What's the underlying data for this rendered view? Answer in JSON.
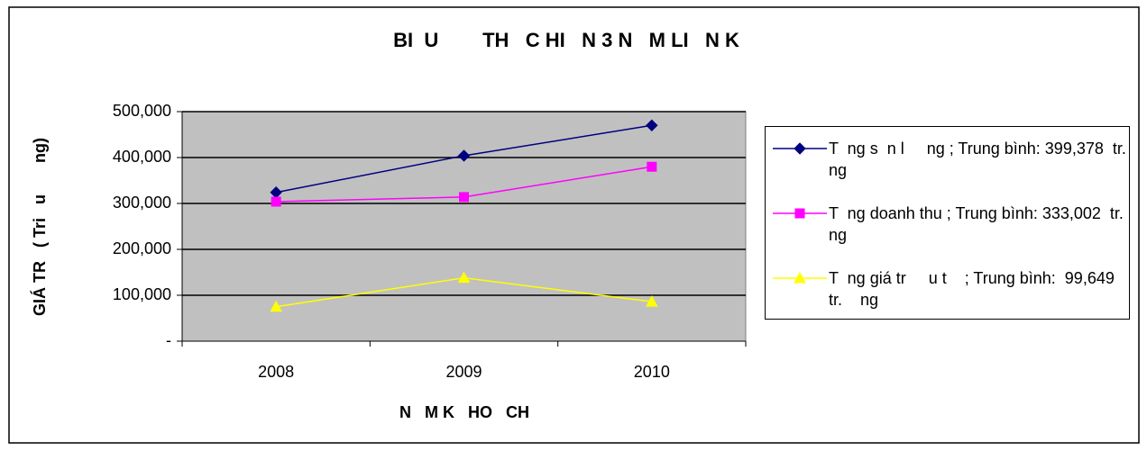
{
  "chart_data": {
    "type": "line",
    "title": "BI  U        TH   C HI   N 3 N   M LI   N K",
    "ylabel": "GIÁ TR   ( Tri   u       ng)",
    "xlabel": "N   M K   HO   CH",
    "categories": [
      "2008",
      "2009",
      "2010"
    ],
    "series": [
      {
        "name": "T  ng s  n l     ng ; Trung bình: 399,378  tr.    ng",
        "color": "#000080",
        "marker": "diamond",
        "values": [
          324000,
          404000,
          470000
        ]
      },
      {
        "name": "T  ng doanh thu ; Trung bình: 333,002  tr.    ng",
        "color": "#ff00ff",
        "marker": "square",
        "values": [
          304000,
          314000,
          380000
        ]
      },
      {
        "name": "T  ng giá tr     u t    ; Trung bình:  99,649  tr.    ng",
        "color": "#ffff00",
        "marker": "triangle",
        "values": [
          75000,
          138000,
          86000
        ]
      }
    ],
    "ylim": [
      0,
      500000
    ],
    "yticks": [
      {
        "value": 0,
        "label": "-"
      },
      {
        "value": 100000,
        "label": "100,000"
      },
      {
        "value": 200000,
        "label": "200,000"
      },
      {
        "value": 300000,
        "label": "300,000"
      },
      {
        "value": 400000,
        "label": "400,000"
      },
      {
        "value": 500000,
        "label": "500,000"
      }
    ],
    "grid": true
  }
}
